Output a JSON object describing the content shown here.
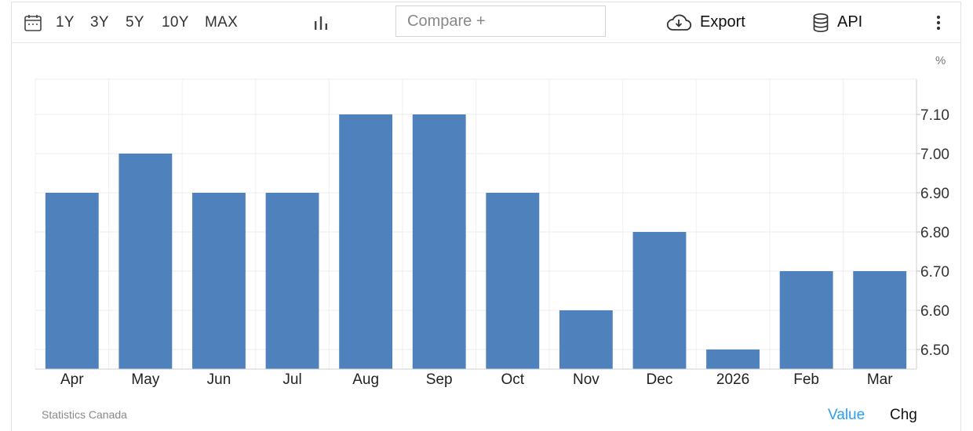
{
  "toolbar": {
    "calendar_icon": "calendar-icon",
    "ranges": [
      "1Y",
      "3Y",
      "5Y",
      "10Y",
      "MAX"
    ],
    "chart_type_icon": "bar-chart-icon",
    "compare_placeholder": "Compare +",
    "export_label": "Export",
    "export_icon": "cloud-download-icon",
    "api_label": "API",
    "api_icon": "database-icon",
    "more_icon": "more-vertical-icon"
  },
  "chart_data": {
    "type": "bar",
    "categories": [
      "Apr",
      "May",
      "Jun",
      "Jul",
      "Aug",
      "Sep",
      "Oct",
      "Nov",
      "Dec",
      "2026",
      "Feb",
      "Mar"
    ],
    "values": [
      6.9,
      7.0,
      6.9,
      6.9,
      7.1,
      7.1,
      6.9,
      6.6,
      6.8,
      6.5,
      6.7,
      6.7
    ],
    "unit_label": "%",
    "yticks": [
      "6.50",
      "6.60",
      "6.70",
      "6.80",
      "6.90",
      "7.00",
      "7.10"
    ],
    "ylim": [
      6.45,
      7.19
    ],
    "grid": true,
    "y_axis_side": "right",
    "bar_color": "#4f81bd"
  },
  "footer": {
    "source": "Statistics Canada",
    "tab_value": "Value",
    "tab_chg": "Chg",
    "active_color": "#2a9df4"
  }
}
